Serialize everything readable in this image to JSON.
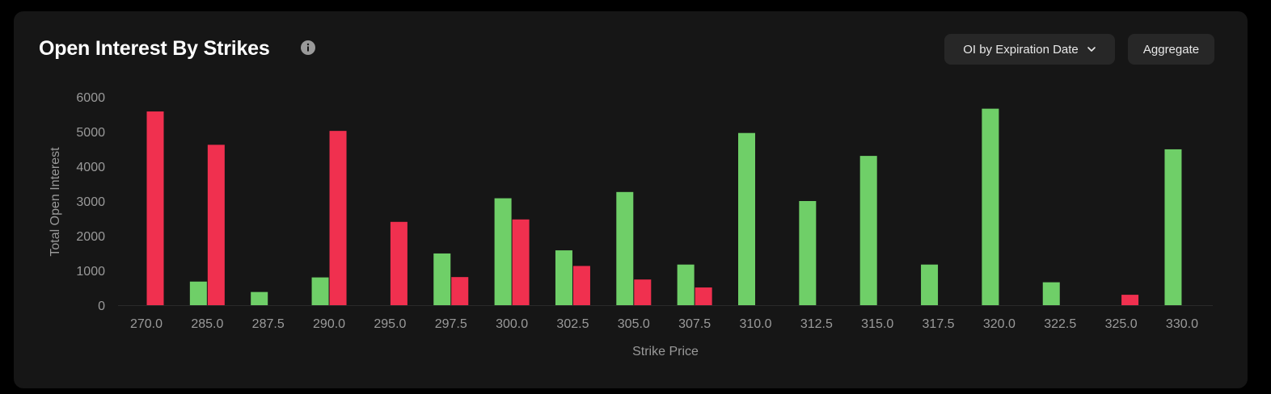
{
  "header": {
    "title": "Open Interest By Strikes",
    "expiry_dropdown_label": "OI by Expiration Date",
    "aggregate_label": "Aggregate"
  },
  "icons": {
    "info": "info-icon",
    "dropdown": "chevron-down-icon"
  },
  "colors": {
    "background": "#161616",
    "calls": "#6fcf68",
    "puts": "#f0304f",
    "text": "#9a9a9a"
  },
  "chart_data": {
    "type": "bar",
    "xlabel": "Strike Price",
    "ylabel": "Total Open Interest",
    "ylim": [
      0,
      6000
    ],
    "yticks": [
      0,
      1000,
      2000,
      3000,
      4000,
      5000,
      6000
    ],
    "grid": false,
    "categories": [
      "270.0",
      "285.0",
      "287.5",
      "290.0",
      "295.0",
      "297.5",
      "300.0",
      "302.5",
      "305.0",
      "307.5",
      "310.0",
      "312.5",
      "315.0",
      "317.5",
      "320.0",
      "322.5",
      "325.0",
      "330.0"
    ],
    "series": [
      {
        "color": "#6fcf68",
        "values": [
          0,
          680,
          380,
          800,
          0,
          1490,
          3080,
          1580,
          3260,
          1170,
          4960,
          3000,
          4300,
          1170,
          5660,
          660,
          0,
          4490
        ]
      },
      {
        "color": "#f0304f",
        "values": [
          5580,
          4620,
          0,
          5020,
          2400,
          810,
          2470,
          1130,
          740,
          510,
          0,
          0,
          0,
          0,
          0,
          0,
          300,
          0
        ]
      }
    ]
  }
}
